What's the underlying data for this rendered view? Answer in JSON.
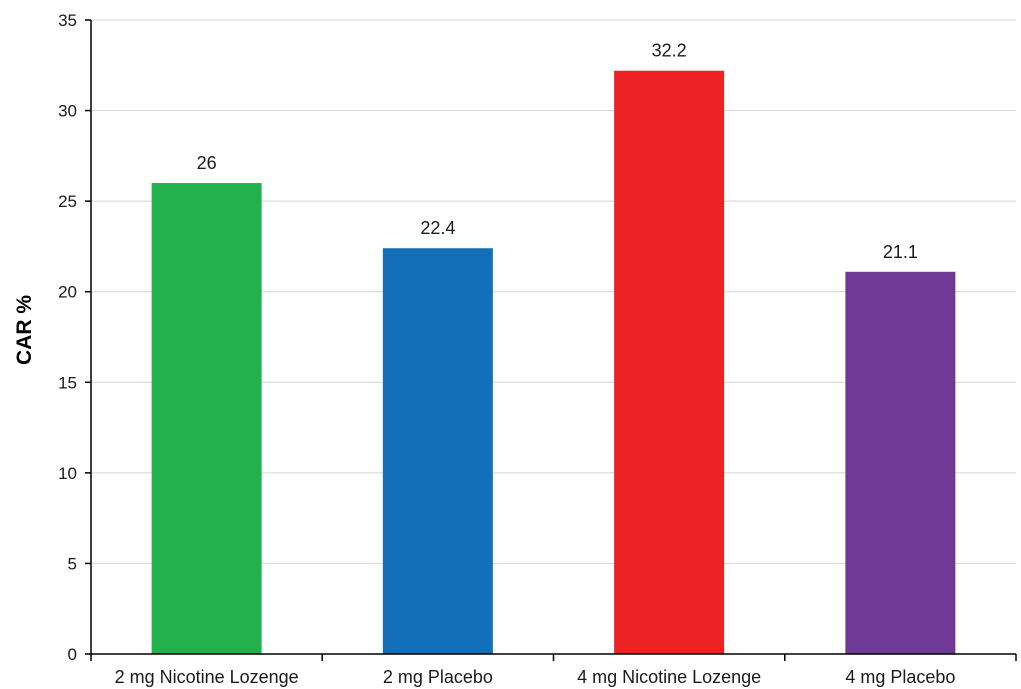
{
  "chart_data": {
    "type": "bar",
    "title": "",
    "xlabel": "",
    "ylabel": "CAR %",
    "ylim": [
      0,
      35
    ],
    "ytick_step": 5,
    "grid": true,
    "legend": "none",
    "categories": [
      "2 mg Nicotine Lozenge",
      "2 mg Placebo",
      "4 mg Nicotine Lozenge",
      "4 mg Placebo"
    ],
    "values": [
      26,
      22.4,
      32.2,
      21.1
    ],
    "data_labels": [
      "26",
      "22.4",
      "32.2",
      "21.1"
    ],
    "colors": [
      "#22b14c",
      "#1370b8",
      "#ed2224",
      "#6f3996"
    ]
  }
}
